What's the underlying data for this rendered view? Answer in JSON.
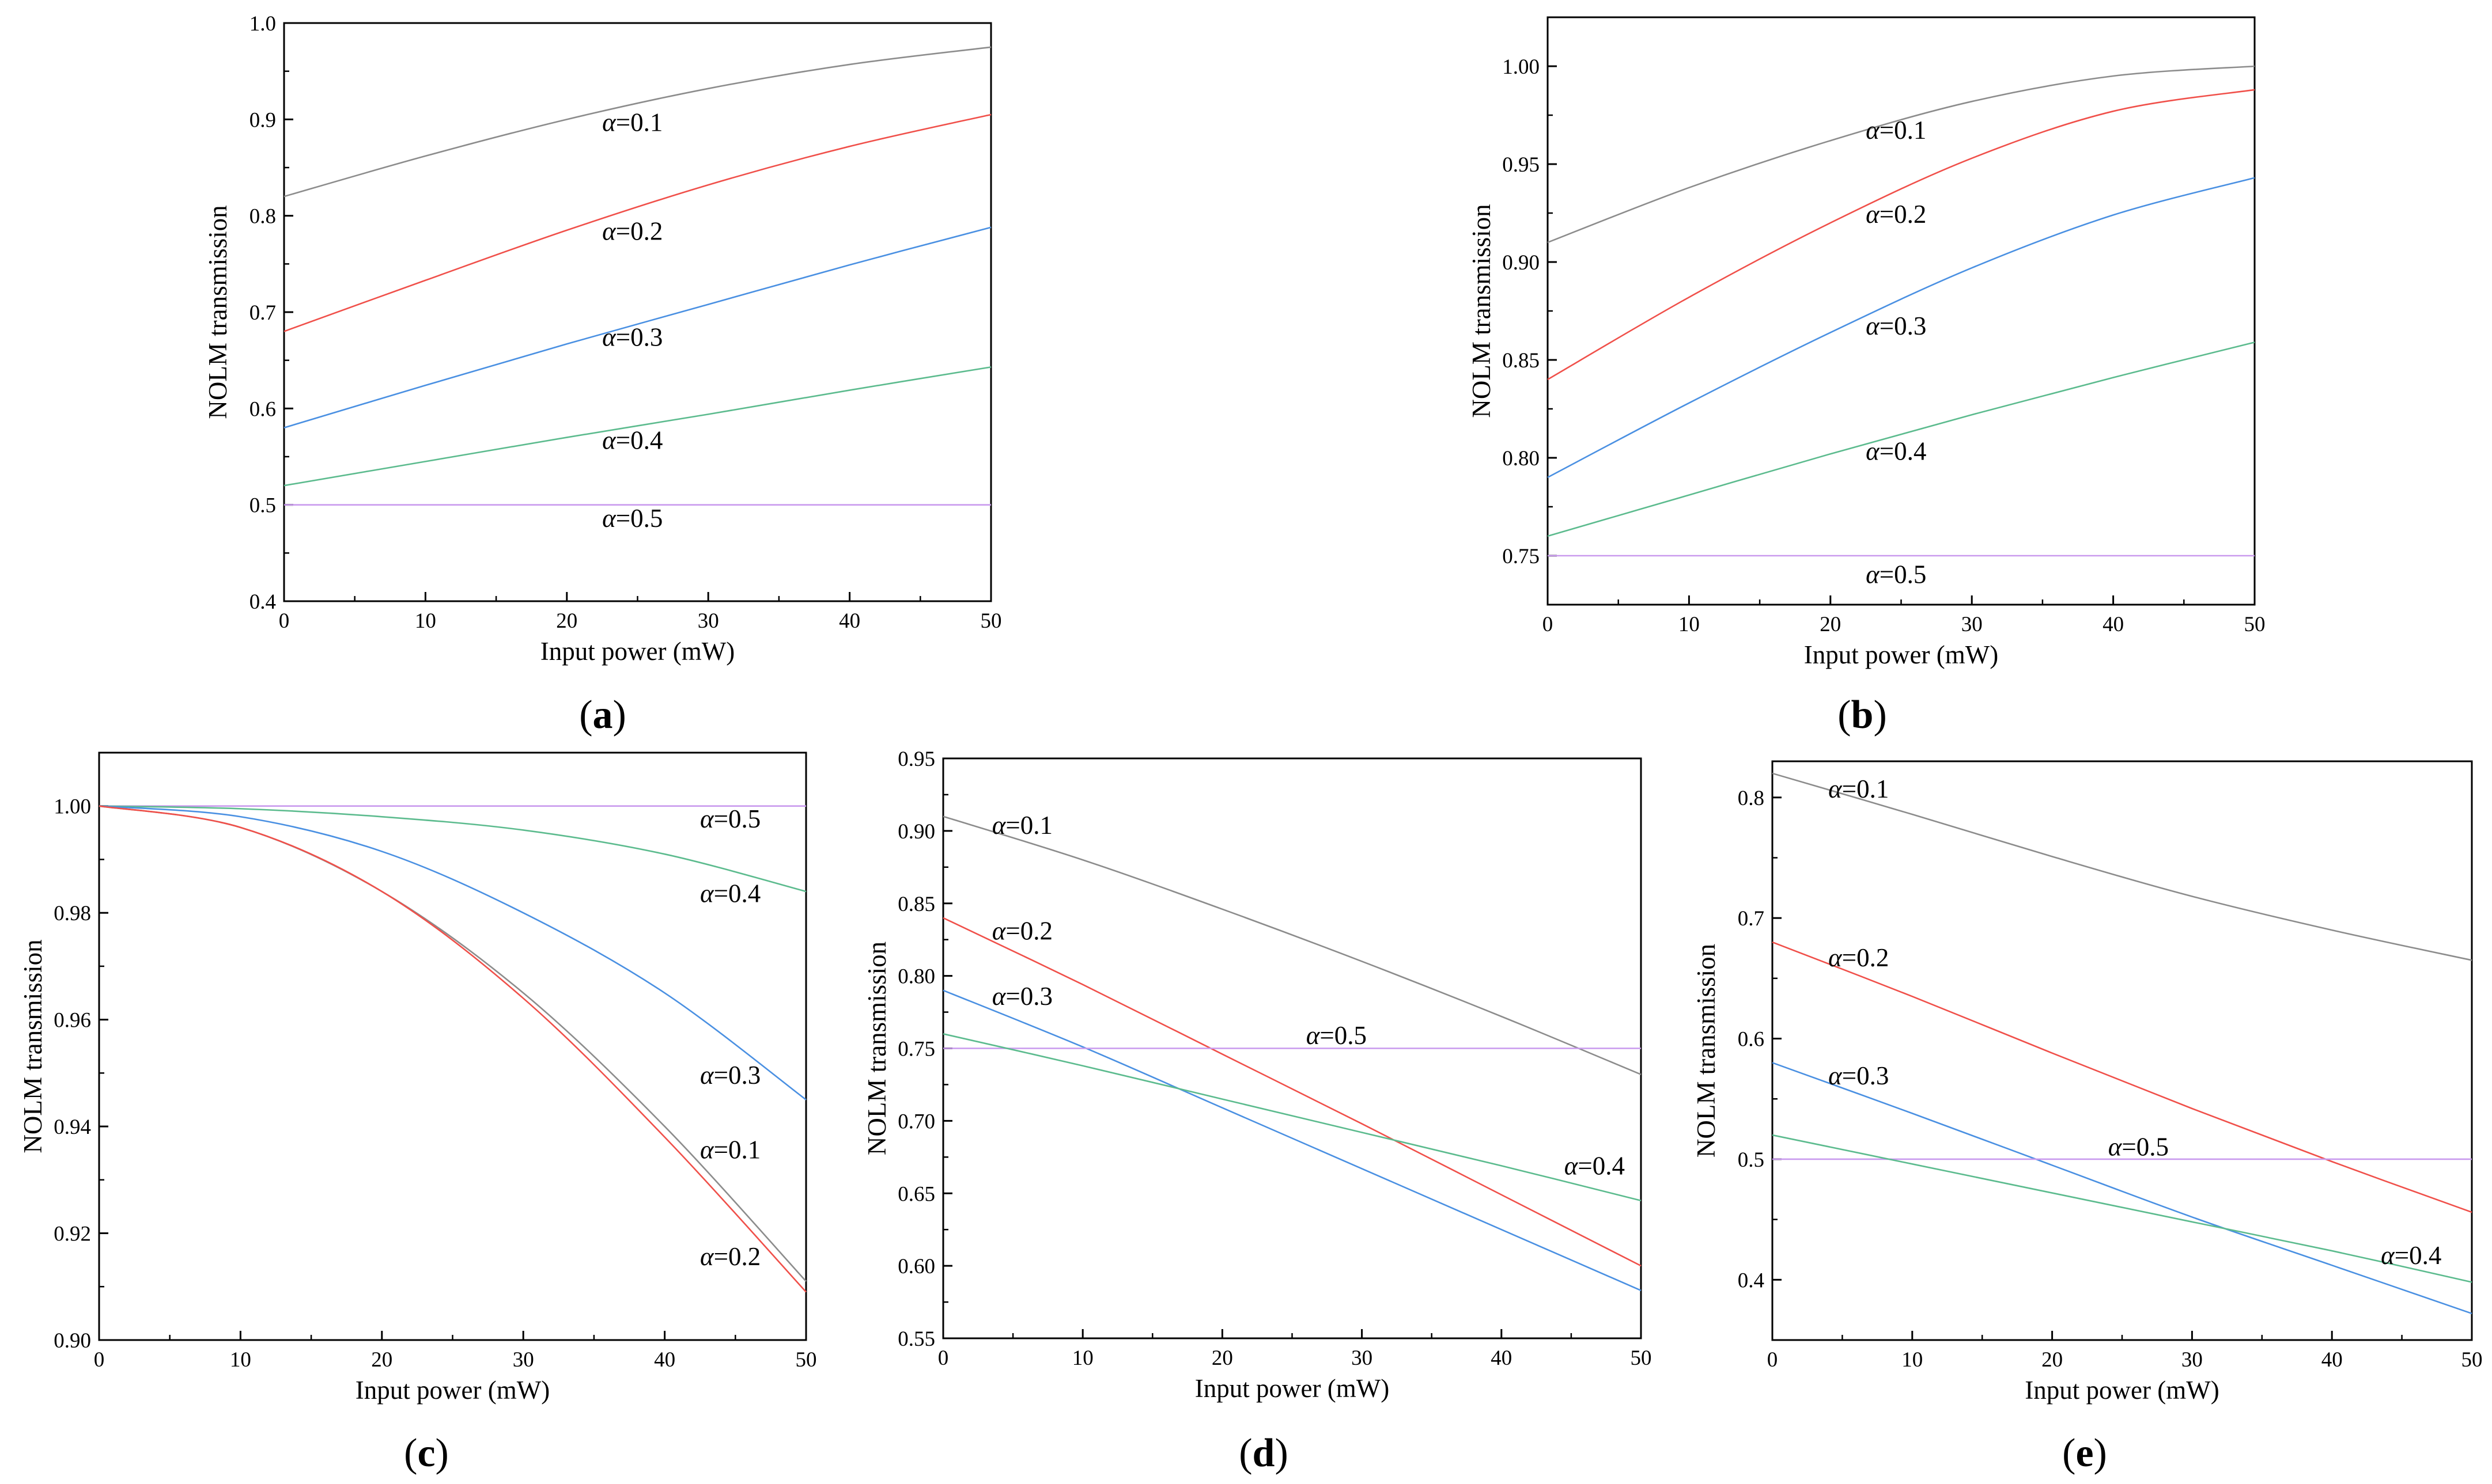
{
  "figure": {
    "colors": {
      "a01": "#8c8c8c",
      "a02": "#f0504a",
      "a03": "#4a90e2",
      "a04": "#5cbb8e",
      "a05": "#c99aee"
    }
  },
  "chart_data": [
    {
      "id": "a",
      "panel_label": "a",
      "type": "line",
      "xlabel": "Input power (mW)",
      "ylabel": "NOLM transmission",
      "xlim": [
        0,
        50
      ],
      "ylim": [
        0.4,
        1.0
      ],
      "xticks": [
        "0",
        "10",
        "20",
        "30",
        "40",
        "50"
      ],
      "yticks": [
        "0.4",
        "0.5",
        "0.6",
        "0.7",
        "0.8",
        "0.9",
        "1.0"
      ],
      "series": [
        {
          "name": "α=0.1",
          "alpha_symbol": "α",
          "label_text": "=0.1",
          "color_key": "a01",
          "x": [
            0,
            10,
            20,
            30,
            40,
            50
          ],
          "values": [
            0.82,
            0.862,
            0.9,
            0.932,
            0.957,
            0.975
          ],
          "label_at": [
            22.5,
            0.888
          ]
        },
        {
          "name": "α=0.2",
          "alpha_symbol": "α",
          "label_text": "=0.2",
          "color_key": "a02",
          "x": [
            0,
            10,
            20,
            30,
            40,
            50
          ],
          "values": [
            0.68,
            0.733,
            0.785,
            0.832,
            0.872,
            0.905
          ],
          "label_at": [
            22.5,
            0.775
          ]
        },
        {
          "name": "α=0.3",
          "alpha_symbol": "α",
          "label_text": "=0.3",
          "color_key": "a03",
          "x": [
            0,
            10,
            20,
            30,
            40,
            50
          ],
          "values": [
            0.58,
            0.624,
            0.667,
            0.708,
            0.749,
            0.788
          ],
          "label_at": [
            22.5,
            0.665
          ]
        },
        {
          "name": "α=0.4",
          "alpha_symbol": "α",
          "label_text": "=0.4",
          "color_key": "a04",
          "x": [
            0,
            10,
            20,
            30,
            40,
            50
          ],
          "values": [
            0.52,
            0.545,
            0.57,
            0.594,
            0.619,
            0.643
          ],
          "label_at": [
            22.5,
            0.558
          ]
        },
        {
          "name": "α=0.5",
          "alpha_symbol": "α",
          "label_text": "=0.5",
          "color_key": "a05",
          "x": [
            0,
            10,
            20,
            30,
            40,
            50
          ],
          "values": [
            0.5,
            0.5,
            0.5,
            0.5,
            0.5,
            0.5
          ],
          "label_at": [
            22.5,
            0.477
          ]
        }
      ]
    },
    {
      "id": "b",
      "panel_label": "b",
      "type": "line",
      "xlabel": "Input power (mW)",
      "ylabel": "NOLM transmission",
      "xlim": [
        0,
        50
      ],
      "ylim": [
        0.725,
        1.025
      ],
      "xticks": [
        "0",
        "10",
        "20",
        "30",
        "40",
        "50"
      ],
      "yticks": [
        "0.75",
        "0.80",
        "0.85",
        "0.90",
        "0.95",
        "1.00"
      ],
      "series": [
        {
          "name": "α=0.1",
          "alpha_symbol": "α",
          "label_text": "=0.1",
          "color_key": "a01",
          "x": [
            0,
            10,
            20,
            30,
            40,
            50
          ],
          "values": [
            0.91,
            0.938,
            0.962,
            0.982,
            0.995,
            1.0
          ],
          "label_at": [
            22.5,
            0.963
          ]
        },
        {
          "name": "α=0.2",
          "alpha_symbol": "α",
          "label_text": "=0.2",
          "color_key": "a02",
          "x": [
            0,
            10,
            20,
            30,
            40,
            50
          ],
          "values": [
            0.84,
            0.882,
            0.92,
            0.953,
            0.977,
            0.988
          ],
          "label_at": [
            22.5,
            0.92
          ]
        },
        {
          "name": "α=0.3",
          "alpha_symbol": "α",
          "label_text": "=0.3",
          "color_key": "a03",
          "x": [
            0,
            10,
            20,
            30,
            40,
            50
          ],
          "values": [
            0.79,
            0.828,
            0.864,
            0.897,
            0.924,
            0.943
          ],
          "label_at": [
            22.5,
            0.863
          ]
        },
        {
          "name": "α=0.4",
          "alpha_symbol": "α",
          "label_text": "=0.4",
          "color_key": "a04",
          "x": [
            0,
            10,
            20,
            30,
            40,
            50
          ],
          "values": [
            0.76,
            0.781,
            0.802,
            0.822,
            0.841,
            0.859
          ],
          "label_at": [
            22.5,
            0.799
          ]
        },
        {
          "name": "α=0.5",
          "alpha_symbol": "α",
          "label_text": "=0.5",
          "color_key": "a05",
          "x": [
            0,
            10,
            20,
            30,
            40,
            50
          ],
          "values": [
            0.75,
            0.75,
            0.75,
            0.75,
            0.75,
            0.75
          ],
          "label_at": [
            22.5,
            0.736
          ]
        }
      ]
    },
    {
      "id": "c",
      "panel_label": "c",
      "type": "line",
      "xlabel": "Input power (mW)",
      "ylabel": "NOLM transmission",
      "xlim": [
        0,
        50
      ],
      "ylim": [
        0.9,
        1.01
      ],
      "xticks": [
        "0",
        "10",
        "20",
        "30",
        "40",
        "50"
      ],
      "yticks": [
        "0.90",
        "0.92",
        "0.94",
        "0.96",
        "0.98",
        "1.00"
      ],
      "series": [
        {
          "name": "α=0.5",
          "alpha_symbol": "α",
          "label_text": "=0.5",
          "color_key": "a05",
          "x": [
            0,
            10,
            20,
            30,
            40,
            50
          ],
          "values": [
            1.0,
            1.0,
            1.0,
            1.0,
            1.0,
            1.0
          ],
          "label_at": [
            42.5,
            0.996
          ]
        },
        {
          "name": "α=0.4",
          "alpha_symbol": "α",
          "label_text": "=0.4",
          "color_key": "a04",
          "x": [
            0,
            10,
            20,
            30,
            40,
            50
          ],
          "values": [
            1.0,
            0.9995,
            0.998,
            0.9955,
            0.991,
            0.984
          ],
          "label_at": [
            42.5,
            0.982
          ]
        },
        {
          "name": "α=0.3",
          "alpha_symbol": "α",
          "label_text": "=0.3",
          "color_key": "a03",
          "x": [
            0,
            10,
            20,
            30,
            40,
            50
          ],
          "values": [
            1.0,
            0.998,
            0.9915,
            0.98,
            0.965,
            0.945
          ],
          "label_at": [
            42.5,
            0.948
          ]
        },
        {
          "name": "α=0.1",
          "alpha_symbol": "α",
          "label_text": "=0.1",
          "color_key": "a01",
          "x": [
            0,
            10,
            20,
            30,
            40,
            50
          ],
          "values": [
            1.0,
            0.996,
            0.984,
            0.965,
            0.94,
            0.911
          ],
          "label_at": [
            42.5,
            0.934
          ]
        },
        {
          "name": "α=0.2",
          "alpha_symbol": "α",
          "label_text": "=0.2",
          "color_key": "a02",
          "x": [
            0,
            10,
            20,
            30,
            40,
            50
          ],
          "values": [
            1.0,
            0.996,
            0.984,
            0.964,
            0.938,
            0.909
          ],
          "label_at": [
            42.5,
            0.914
          ]
        }
      ]
    },
    {
      "id": "d",
      "panel_label": "d",
      "type": "line",
      "xlabel": "Input power (mW)",
      "ylabel": "NOLM transmission",
      "xlim": [
        0,
        50
      ],
      "ylim": [
        0.55,
        0.95
      ],
      "xticks": [
        "0",
        "10",
        "20",
        "30",
        "40",
        "50"
      ],
      "yticks": [
        "0.55",
        "0.60",
        "0.65",
        "0.70",
        "0.75",
        "0.80",
        "0.85",
        "0.90",
        "0.95"
      ],
      "series": [
        {
          "name": "α=0.1",
          "alpha_symbol": "α",
          "label_text": "=0.1",
          "color_key": "a01",
          "x": [
            0,
            10,
            20,
            30,
            40,
            50
          ],
          "values": [
            0.91,
            0.88,
            0.846,
            0.81,
            0.772,
            0.732
          ],
          "label_at": [
            3.5,
            0.898
          ]
        },
        {
          "name": "α=0.2",
          "alpha_symbol": "α",
          "label_text": "=0.2",
          "color_key": "a02",
          "x": [
            0,
            10,
            20,
            30,
            40,
            50
          ],
          "values": [
            0.84,
            0.794,
            0.746,
            0.698,
            0.649,
            0.6
          ],
          "label_at": [
            3.5,
            0.825
          ]
        },
        {
          "name": "α=0.3",
          "alpha_symbol": "α",
          "label_text": "=0.3",
          "color_key": "a03",
          "x": [
            0,
            10,
            20,
            30,
            40,
            50
          ],
          "values": [
            0.79,
            0.751,
            0.709,
            0.667,
            0.625,
            0.583
          ],
          "label_at": [
            3.5,
            0.78
          ]
        },
        {
          "name": "α=0.5",
          "alpha_symbol": "α",
          "label_text": "=0.5",
          "color_key": "a05",
          "x": [
            0,
            10,
            20,
            30,
            40,
            50
          ],
          "values": [
            0.75,
            0.75,
            0.75,
            0.75,
            0.75,
            0.75
          ],
          "label_at": [
            26,
            0.753
          ]
        },
        {
          "name": "α=0.4",
          "alpha_symbol": "α",
          "label_text": "=0.4",
          "color_key": "a04",
          "x": [
            0,
            10,
            20,
            30,
            40,
            50
          ],
          "values": [
            0.76,
            0.738,
            0.715,
            0.692,
            0.669,
            0.645
          ],
          "label_at": [
            44.5,
            0.663
          ]
        }
      ]
    },
    {
      "id": "e",
      "panel_label": "e",
      "type": "line",
      "xlabel": "Input power (mW)",
      "ylabel": "NOLM transmission",
      "xlim": [
        0,
        50
      ],
      "ylim": [
        0.35,
        0.83
      ],
      "xticks": [
        "0",
        "10",
        "20",
        "30",
        "40",
        "50"
      ],
      "yticks": [
        "0.4",
        "0.5",
        "0.6",
        "0.7",
        "0.8"
      ],
      "series": [
        {
          "name": "α=0.1",
          "alpha_symbol": "α",
          "label_text": "=0.1",
          "color_key": "a01",
          "x": [
            0,
            10,
            20,
            30,
            40,
            50
          ],
          "values": [
            0.82,
            0.786,
            0.751,
            0.718,
            0.69,
            0.665
          ],
          "label_at": [
            4,
            0.8
          ]
        },
        {
          "name": "α=0.2",
          "alpha_symbol": "α",
          "label_text": "=0.2",
          "color_key": "a02",
          "x": [
            0,
            10,
            20,
            30,
            40,
            50
          ],
          "values": [
            0.68,
            0.635,
            0.588,
            0.542,
            0.498,
            0.456
          ],
          "label_at": [
            4,
            0.66
          ]
        },
        {
          "name": "α=0.3",
          "alpha_symbol": "α",
          "label_text": "=0.3",
          "color_key": "a03",
          "x": [
            0,
            10,
            20,
            30,
            40,
            50
          ],
          "values": [
            0.58,
            0.538,
            0.495,
            0.452,
            0.412,
            0.372
          ],
          "label_at": [
            4,
            0.562
          ]
        },
        {
          "name": "α=0.5",
          "alpha_symbol": "α",
          "label_text": "=0.5",
          "color_key": "a05",
          "x": [
            0,
            10,
            20,
            30,
            40,
            50
          ],
          "values": [
            0.5,
            0.5,
            0.5,
            0.5,
            0.5,
            0.5
          ],
          "label_at": [
            24,
            0.503
          ]
        },
        {
          "name": "α=0.4",
          "alpha_symbol": "α",
          "label_text": "=0.4",
          "color_key": "a04",
          "x": [
            0,
            10,
            20,
            30,
            40,
            50
          ],
          "values": [
            0.52,
            0.496,
            0.472,
            0.448,
            0.424,
            0.398
          ],
          "label_at": [
            43.5,
            0.413
          ]
        }
      ]
    }
  ]
}
